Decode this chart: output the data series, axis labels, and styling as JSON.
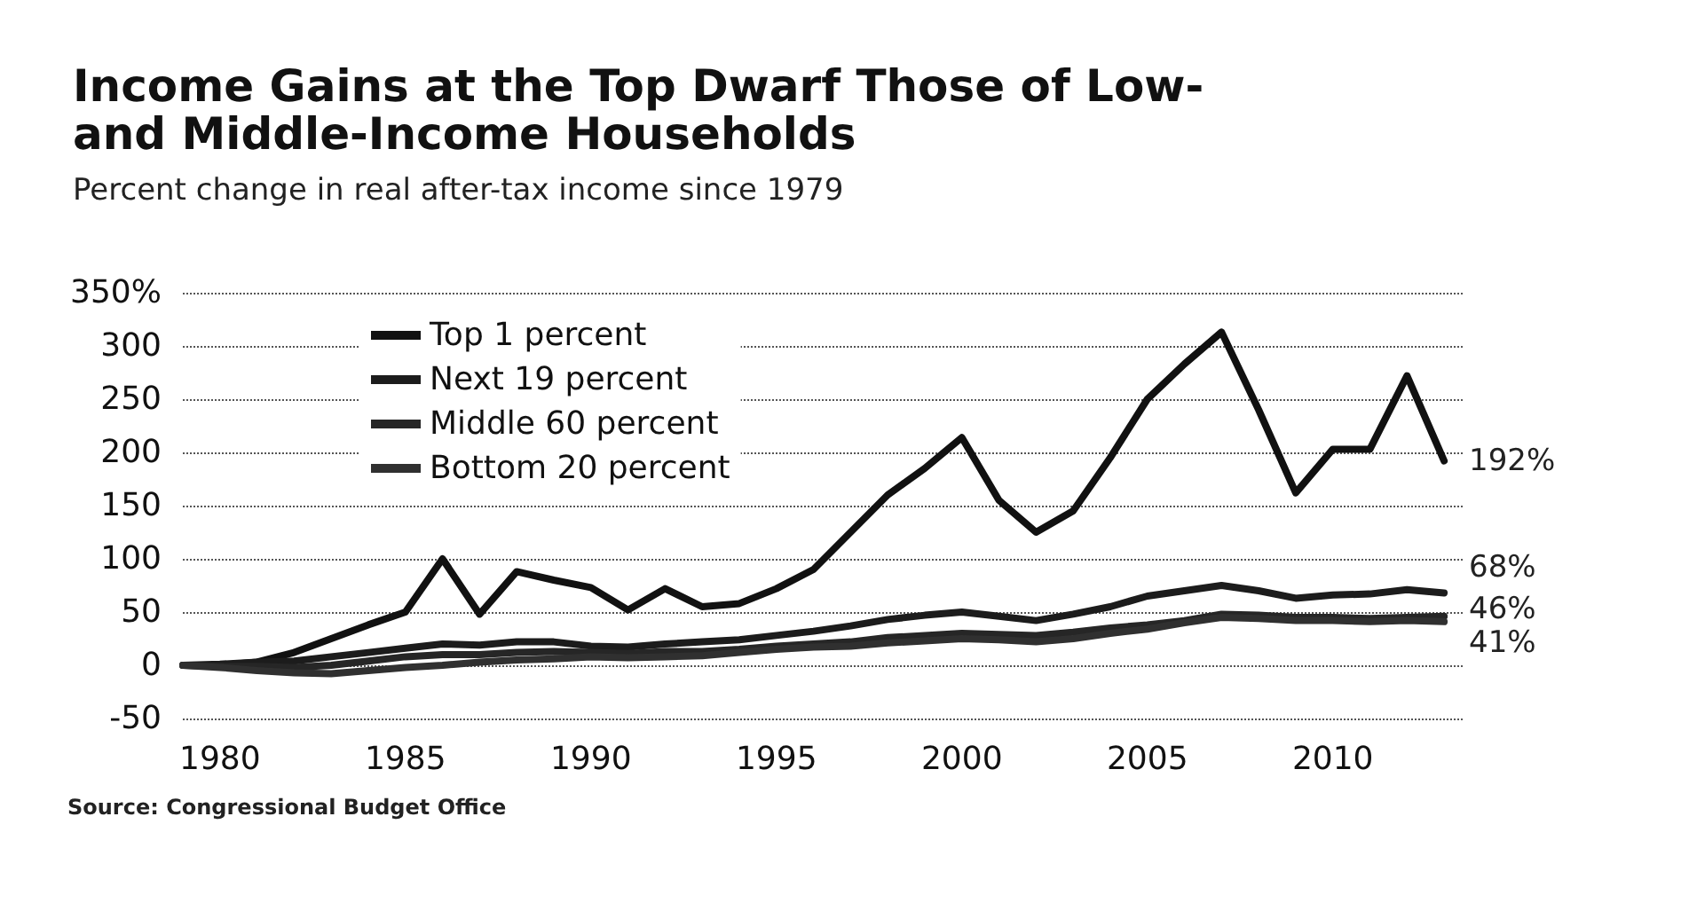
{
  "chart_data": {
    "type": "line",
    "title": "Income Gains at the Top Dwarf Those of Low-\nand Middle-Income Households",
    "subtitle": "Percent change in real after-tax income since 1979",
    "annotations": [
      "Source: Congressional Budget Office"
    ],
    "x": [
      1979,
      1980,
      1981,
      1982,
      1983,
      1984,
      1985,
      1986,
      1987,
      1988,
      1989,
      1990,
      1991,
      1992,
      1993,
      1994,
      1995,
      1996,
      1997,
      1998,
      1999,
      2000,
      2001,
      2002,
      2003,
      2004,
      2005,
      2006,
      2007,
      2008,
      2009,
      2010,
      2011,
      2012,
      2013
    ],
    "series": [
      {
        "name": "Top 1 percent",
        "color": "#111111",
        "values": [
          0,
          0,
          3,
          12,
          25,
          38,
          50,
          100,
          48,
          88,
          80,
          73,
          52,
          72,
          55,
          58,
          72,
          90,
          125,
          160,
          185,
          214,
          155,
          125,
          145,
          195,
          250,
          283,
          313,
          240,
          162,
          203,
          203,
          272,
          192
        ],
        "value_labels": [
          null,
          null,
          null,
          null,
          null,
          null,
          null,
          null,
          null,
          null,
          null,
          null,
          null,
          null,
          null,
          null,
          null,
          null,
          null,
          null,
          null,
          null,
          null,
          null,
          null,
          null,
          null,
          null,
          null,
          null,
          null,
          null,
          null,
          null,
          "192%"
        ]
      },
      {
        "name": "Next 19 percent",
        "color": "#1c1c1c",
        "values": [
          0,
          1,
          3,
          4,
          8,
          12,
          16,
          20,
          19,
          22,
          22,
          18,
          17,
          20,
          22,
          24,
          28,
          32,
          37,
          43,
          47,
          50,
          46,
          42,
          48,
          55,
          65,
          70,
          75,
          70,
          63,
          66,
          67,
          71,
          68
        ],
        "value_labels": [
          null,
          null,
          null,
          null,
          null,
          null,
          null,
          null,
          null,
          null,
          null,
          null,
          null,
          null,
          null,
          null,
          null,
          null,
          null,
          null,
          null,
          null,
          null,
          null,
          null,
          null,
          null,
          null,
          null,
          null,
          null,
          null,
          null,
          null,
          "68%"
        ]
      },
      {
        "name": "Middle 60 percent",
        "color": "#262626",
        "values": [
          0,
          -1,
          -1,
          -2,
          0,
          4,
          8,
          10,
          10,
          12,
          13,
          12,
          11,
          13,
          13,
          15,
          18,
          20,
          22,
          26,
          28,
          30,
          29,
          28,
          31,
          35,
          38,
          42,
          48,
          47,
          45,
          45,
          44,
          45,
          46
        ],
        "value_labels": [
          null,
          null,
          null,
          null,
          null,
          null,
          null,
          null,
          null,
          null,
          null,
          null,
          null,
          null,
          null,
          null,
          null,
          null,
          null,
          null,
          null,
          null,
          null,
          null,
          null,
          null,
          null,
          null,
          null,
          null,
          null,
          null,
          null,
          null,
          "46%"
        ]
      },
      {
        "name": "Bottom 20 percent",
        "color": "#303030",
        "values": [
          0,
          -2,
          -5,
          -7,
          -8,
          -5,
          -2,
          0,
          3,
          5,
          6,
          8,
          7,
          8,
          9,
          12,
          15,
          17,
          18,
          21,
          23,
          25,
          24,
          22,
          25,
          30,
          34,
          40,
          45,
          44,
          42,
          42,
          41,
          42,
          41
        ],
        "value_labels": [
          null,
          null,
          null,
          null,
          null,
          null,
          null,
          null,
          null,
          null,
          null,
          null,
          null,
          null,
          null,
          null,
          null,
          null,
          null,
          null,
          null,
          null,
          null,
          null,
          null,
          null,
          null,
          null,
          null,
          null,
          null,
          null,
          null,
          null,
          "41%"
        ]
      }
    ],
    "xlim": [
      1979,
      2013.5
    ],
    "xticks": [
      1980,
      1985,
      1990,
      1995,
      2000,
      2005,
      2010
    ],
    "ylim": [
      -50,
      350
    ],
    "yticks": [
      -50,
      0,
      50,
      100,
      150,
      200,
      250,
      300,
      {
        "value": 350,
        "label": "350%"
      }
    ],
    "grid": "y",
    "legend": "top left",
    "marker": "none",
    "line_style": "solid"
  }
}
